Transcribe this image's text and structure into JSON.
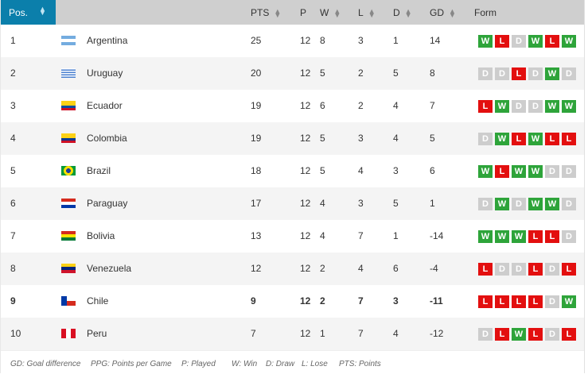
{
  "header": {
    "pos": "Pos.",
    "pts": "PTS",
    "p": "P",
    "w": "W",
    "l": "L",
    "d": "D",
    "gd": "GD",
    "form": "Form"
  },
  "rows": [
    {
      "pos": "1",
      "team": "Argentina",
      "flag": "argentina",
      "pts": "25",
      "p": "12",
      "w": "8",
      "l": "3",
      "d": "1",
      "gd": "14",
      "form": [
        "W",
        "L",
        "D",
        "W",
        "L",
        "W"
      ]
    },
    {
      "pos": "2",
      "team": "Uruguay",
      "flag": "uruguay",
      "pts": "20",
      "p": "12",
      "w": "5",
      "l": "2",
      "d": "5",
      "gd": "8",
      "form": [
        "D",
        "D",
        "L",
        "D",
        "W",
        "D"
      ]
    },
    {
      "pos": "3",
      "team": "Ecuador",
      "flag": "ecuador",
      "pts": "19",
      "p": "12",
      "w": "6",
      "l": "2",
      "d": "4",
      "gd": "7",
      "form": [
        "L",
        "W",
        "D",
        "D",
        "W",
        "W"
      ]
    },
    {
      "pos": "4",
      "team": "Colombia",
      "flag": "colombia",
      "pts": "19",
      "p": "12",
      "w": "5",
      "l": "3",
      "d": "4",
      "gd": "5",
      "form": [
        "D",
        "W",
        "L",
        "W",
        "L",
        "L"
      ]
    },
    {
      "pos": "5",
      "team": "Brazil",
      "flag": "brazil",
      "pts": "18",
      "p": "12",
      "w": "5",
      "l": "4",
      "d": "3",
      "gd": "6",
      "form": [
        "W",
        "L",
        "W",
        "W",
        "D",
        "D"
      ]
    },
    {
      "pos": "6",
      "team": "Paraguay",
      "flag": "paraguay",
      "pts": "17",
      "p": "12",
      "w": "4",
      "l": "3",
      "d": "5",
      "gd": "1",
      "form": [
        "D",
        "W",
        "D",
        "W",
        "W",
        "D"
      ]
    },
    {
      "pos": "7",
      "team": "Bolivia",
      "flag": "bolivia",
      "pts": "13",
      "p": "12",
      "w": "4",
      "l": "7",
      "d": "1",
      "gd": "-14",
      "form": [
        "W",
        "W",
        "W",
        "L",
        "L",
        "D"
      ]
    },
    {
      "pos": "8",
      "team": "Venezuela",
      "flag": "venezuela",
      "pts": "12",
      "p": "12",
      "w": "2",
      "l": "4",
      "d": "6",
      "gd": "-4",
      "form": [
        "L",
        "D",
        "D",
        "L",
        "D",
        "L"
      ]
    },
    {
      "pos": "9",
      "team": "Chile",
      "flag": "chile",
      "pts": "9",
      "p": "12",
      "w": "2",
      "l": "7",
      "d": "3",
      "gd": "-11",
      "form": [
        "L",
        "L",
        "L",
        "L",
        "D",
        "W"
      ],
      "highlighted": true
    },
    {
      "pos": "10",
      "team": "Peru",
      "flag": "peru",
      "pts": "7",
      "p": "12",
      "w": "1",
      "l": "7",
      "d": "4",
      "gd": "-12",
      "form": [
        "D",
        "L",
        "W",
        "L",
        "D",
        "L"
      ]
    }
  ],
  "legend": [
    "GD: Goal difference",
    "PPG: Points per Game",
    "P: Played",
    "W: Win",
    "D: Draw",
    "L: Lose",
    "PTS: Points"
  ],
  "colors": {
    "header_accent": "#0b7fab",
    "win": "#2ea43a",
    "loss": "#e30f0f",
    "draw": "#cdcdcd"
  }
}
